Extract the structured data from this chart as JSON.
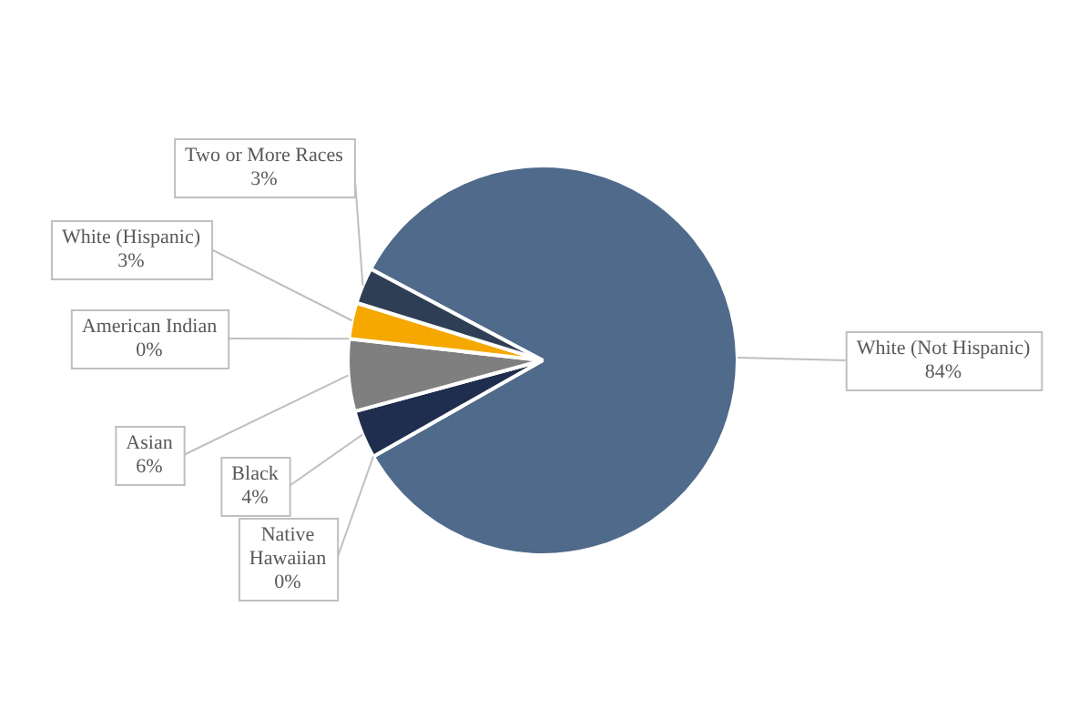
{
  "chart_data": {
    "type": "pie",
    "categories": [
      "White (Not Hispanic)",
      "Native Hawaiian",
      "Black",
      "Asian",
      "American Indian",
      "White (Hispanic)",
      "Two or More Races"
    ],
    "values": [
      84,
      0,
      4,
      6,
      0,
      3,
      3
    ],
    "value_labels": [
      "84%",
      "0%",
      "4%",
      "6%",
      "0%",
      "3%",
      "3%"
    ],
    "colors": [
      "#4f6a8a",
      "#5b9bd5",
      "#1f2d4e",
      "#7f7f7f",
      "#a5a5a5",
      "#f5a800",
      "#2e3f55"
    ],
    "legend": false
  }
}
